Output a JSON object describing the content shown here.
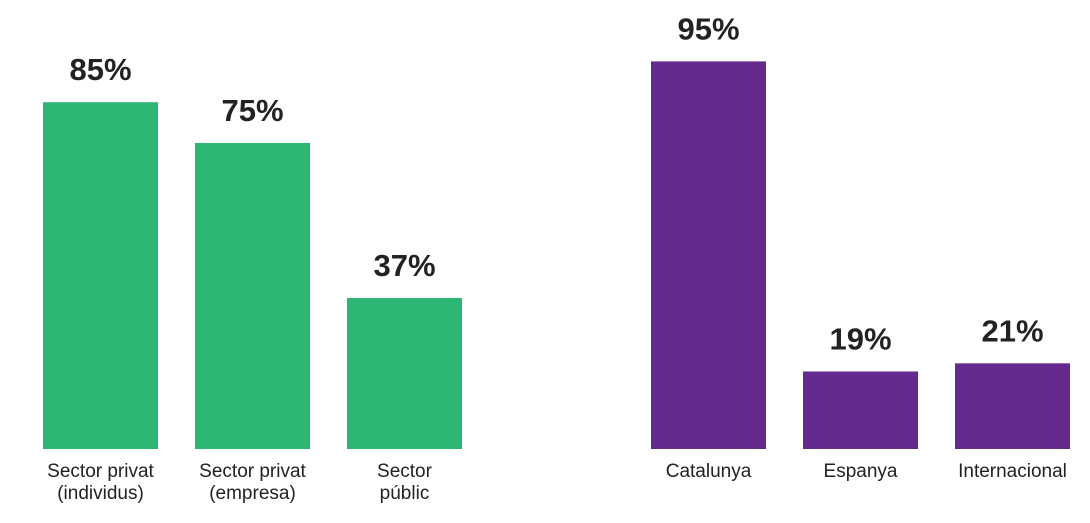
{
  "chart_data": [
    {
      "type": "bar",
      "categories": [
        [
          "Sector privat",
          "(individus)"
        ],
        [
          "Sector privat",
          "(empresa)"
        ],
        [
          "Sector",
          "públic"
        ]
      ],
      "values": [
        85,
        75,
        37
      ],
      "value_labels": [
        "85%",
        "75%",
        "37%"
      ],
      "color": "#2bb673",
      "ylim": [
        0,
        100
      ]
    },
    {
      "type": "bar",
      "categories": [
        [
          "Catalunya"
        ],
        [
          "Espanya"
        ],
        [
          "Internacional"
        ]
      ],
      "values": [
        95,
        19,
        21
      ],
      "value_labels": [
        "95%",
        "19%",
        "21%"
      ],
      "color": "#652a8e",
      "ylim": [
        0,
        100
      ]
    }
  ]
}
